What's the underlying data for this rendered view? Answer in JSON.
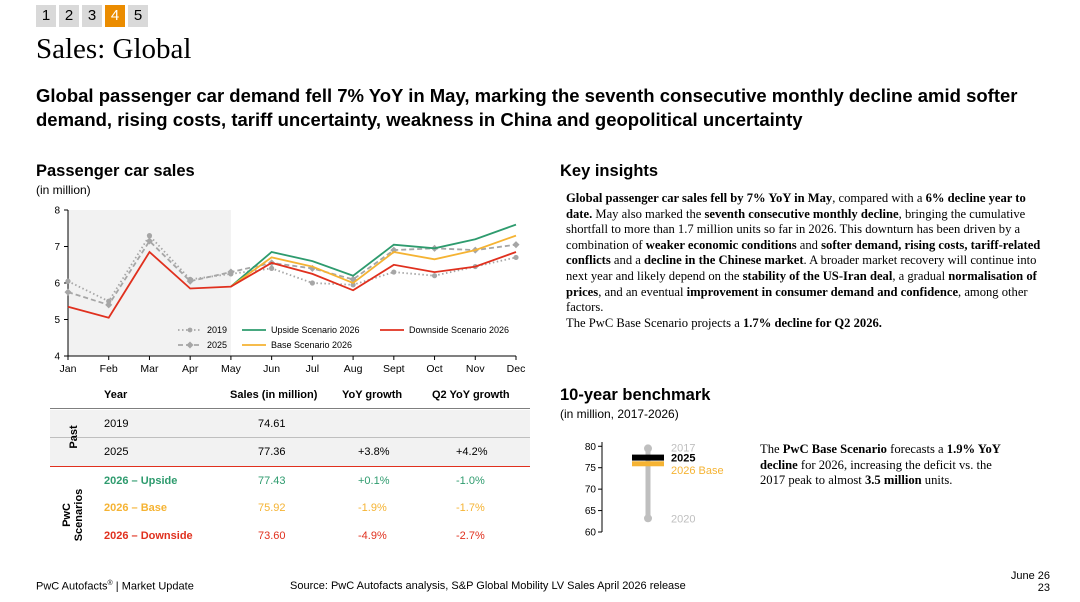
{
  "pager": [
    "1",
    "2",
    "3",
    "4",
    "5"
  ],
  "pager_active": 3,
  "page_title": "Sales: Global",
  "headline": "Global passenger car demand fell 7% YoY in May, marking the seventh consecutive monthly decline amid softer demand, rising costs, tariff uncertainty, weakness in China and geopolitical uncertainty",
  "sales_section": {
    "title": "Passenger car sales",
    "subtitle": "(in million)"
  },
  "chart_data": {
    "type": "line",
    "title": "Passenger car sales",
    "ylabel": "(in million)",
    "categories": [
      "Jan",
      "Feb",
      "Mar",
      "Apr",
      "May",
      "Jun",
      "Jul",
      "Aug",
      "Sept",
      "Oct",
      "Nov",
      "Dec"
    ],
    "yticks": [
      "4",
      "5",
      "6",
      "7",
      "8"
    ],
    "ylim": [
      4,
      8
    ],
    "shaded_range": [
      "Jan",
      "May"
    ],
    "series": [
      {
        "name": "2019",
        "color": "#a6a6a6",
        "style": "dotted",
        "values": [
          6.05,
          5.5,
          7.3,
          6.1,
          6.25,
          6.4,
          6.0,
          5.95,
          6.3,
          6.2,
          6.45,
          6.7
        ]
      },
      {
        "name": "2025",
        "color": "#a6a6a6",
        "style": "dashed",
        "values": [
          5.75,
          5.4,
          7.15,
          6.05,
          6.3,
          6.55,
          6.4,
          6.1,
          6.9,
          6.95,
          6.9,
          7.05
        ]
      },
      {
        "name": "Upside Scenario 2026",
        "color": "#2e9b6e",
        "style": "solid",
        "values": [
          null,
          null,
          null,
          null,
          5.9,
          6.85,
          6.6,
          6.2,
          7.05,
          6.95,
          7.2,
          7.6
        ]
      },
      {
        "name": "Base Scenario 2026",
        "color": "#f5b333",
        "style": "solid",
        "values": [
          null,
          null,
          null,
          null,
          5.9,
          6.7,
          6.45,
          6.0,
          6.85,
          6.65,
          6.9,
          7.3
        ]
      },
      {
        "name": "Downside Scenario 2026",
        "color": "#e0301e",
        "style": "solid",
        "values": [
          5.35,
          5.05,
          6.85,
          5.85,
          5.9,
          6.55,
          6.25,
          5.8,
          6.5,
          6.3,
          6.45,
          6.85
        ]
      }
    ],
    "legend_position": "bottom-center"
  },
  "table": {
    "headers": [
      "Year",
      "Sales (in million)",
      "YoY growth",
      "Q2 YoY growth"
    ],
    "group_past": "Past",
    "group_pwc": "PwC Scenarios",
    "rows": [
      {
        "year": "2019",
        "sales": "74.61",
        "yoy": "",
        "q2": "",
        "color": "#000000"
      },
      {
        "year": "2025",
        "sales": "77.36",
        "yoy": "+3.8%",
        "q2": "+4.2%",
        "color": "#000000"
      },
      {
        "year": "2026 – Upside",
        "sales": "77.43",
        "yoy": "+0.1%",
        "q2": "-1.0%",
        "color": "#2e9b6e"
      },
      {
        "year": "2026 – Base",
        "sales": "75.92",
        "yoy": "-1.9%",
        "q2": "-1.7%",
        "color": "#f5b333"
      },
      {
        "year": "2026 – Downside",
        "sales": "73.60",
        "yoy": "-4.9%",
        "q2": "-2.7%",
        "color": "#e0301e"
      }
    ]
  },
  "insights": {
    "title": "Key insights",
    "p1": [
      {
        "t": "Global passenger car sales fell by 7% YoY in May",
        "b": true
      },
      {
        "t": ", compared with a ",
        "b": false
      },
      {
        "t": "6% decline year to date.",
        "b": true
      },
      {
        "t": " May also marked the ",
        "b": false
      },
      {
        "t": "seventh consecutive monthly decline",
        "b": true
      },
      {
        "t": ", bringing the cumulative shortfall to more than 1.7 million units so far in 2026. This downturn has been driven by a combination of ",
        "b": false
      },
      {
        "t": "weaker economic conditions",
        "b": true
      },
      {
        "t": " and ",
        "b": false
      },
      {
        "t": "softer demand, rising costs, tariff-related conflicts",
        "b": true
      },
      {
        "t": " and a ",
        "b": false
      },
      {
        "t": "decline in the Chinese market",
        "b": true
      },
      {
        "t": ". A broader market recovery will continue into next year and likely depend on the ",
        "b": false
      },
      {
        "t": "stability of the US-Iran deal",
        "b": true
      },
      {
        "t": ", a gradual ",
        "b": false
      },
      {
        "t": "normalisation of prices",
        "b": true
      },
      {
        "t": ", and an eventual ",
        "b": false
      },
      {
        "t": "improvement in consumer demand and confidence",
        "b": true
      },
      {
        "t": ", among other factors.",
        "b": false
      }
    ],
    "p2": [
      {
        "t": "The PwC Base Scenario projects a ",
        "b": false
      },
      {
        "t": "1.7% decline for Q2 2026.",
        "b": true
      }
    ]
  },
  "benchmark": {
    "title": "10-year benchmark",
    "subtitle": "(in million, 2017-2026)",
    "yticks": [
      "60",
      "65",
      "70",
      "75",
      "80"
    ],
    "ylim": [
      60,
      81
    ],
    "values": {
      "2017": 79.5,
      "2020": 63.2,
      "2025": 77.36,
      "2026 Base": 75.92
    },
    "labels": [
      "2017",
      "2025",
      "2026 Base",
      "2020"
    ],
    "text": [
      {
        "t": "The ",
        "b": false
      },
      {
        "t": "PwC Base Scenario",
        "b": true
      },
      {
        "t": " forecasts a ",
        "b": false
      },
      {
        "t": "1.9% YoY decline",
        "b": true
      },
      {
        "t": " for 2026, increasing the deficit vs. the 2017 peak to almost ",
        "b": false
      },
      {
        "t": "3.5 million",
        "b": true
      },
      {
        "t": " units.",
        "b": false
      }
    ]
  },
  "footer": {
    "brand": "PwC Autofacts",
    "brand_mark": "®",
    "brand_rest": " | Market Update",
    "source": "Source: PwC Autofacts analysis, S&P Global Mobility LV Sales April 2026 release",
    "date": "June 26",
    "page": "23"
  }
}
